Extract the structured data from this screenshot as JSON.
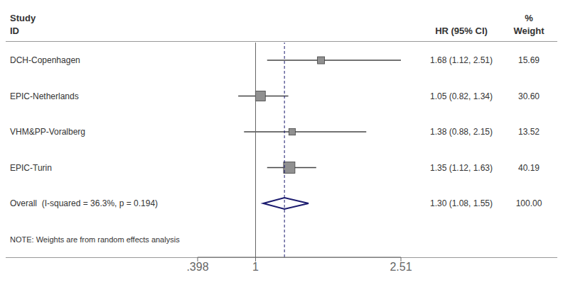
{
  "chart_data": {
    "type": "forest",
    "categories": [
      "DCH-Copenhagen",
      "EPIC-Netherlands",
      "VHM&PP-Voralberg",
      "EPIC-Turin"
    ],
    "values": [
      1.68,
      1.05,
      1.38,
      1.35
    ],
    "ci_low": [
      1.12,
      0.82,
      0.88,
      1.12
    ],
    "ci_high": [
      2.51,
      1.34,
      2.15,
      1.63
    ],
    "weights": [
      15.69,
      30.6,
      13.52,
      40.19
    ],
    "value_labels": [
      "1.68 (1.12, 2.51)",
      "1.05 (0.82, 1.34)",
      "1.38 (0.88, 2.15)",
      "1.35 (1.12, 1.63)"
    ],
    "weight_labels": [
      "15.69",
      "30.60",
      "13.52",
      "40.19"
    ],
    "color": "#909090",
    "overall": {
      "label": "Overall  (I-squared = 36.3%, p = 0.194)",
      "value": 1.3,
      "ci_low": 1.08,
      "ci_high": 1.55,
      "value_label": "1.30 (1.08, 1.55)",
      "weight": 100,
      "weight_label": "100.00",
      "color": "#1a1a6e"
    },
    "headers": {
      "study": [
        "Study",
        "ID"
      ],
      "estimate": [
        "HR (95% CI)"
      ],
      "weight": [
        "%",
        "Weight"
      ]
    },
    "annotations": [
      "NOTE: Weights are from random effects analysis"
    ],
    "reference_line": 1,
    "xlim": [
      0.398,
      2.51
    ],
    "xticks": [
      {
        "value": 0.398,
        "label": ".398"
      },
      1,
      2.51
    ]
  }
}
